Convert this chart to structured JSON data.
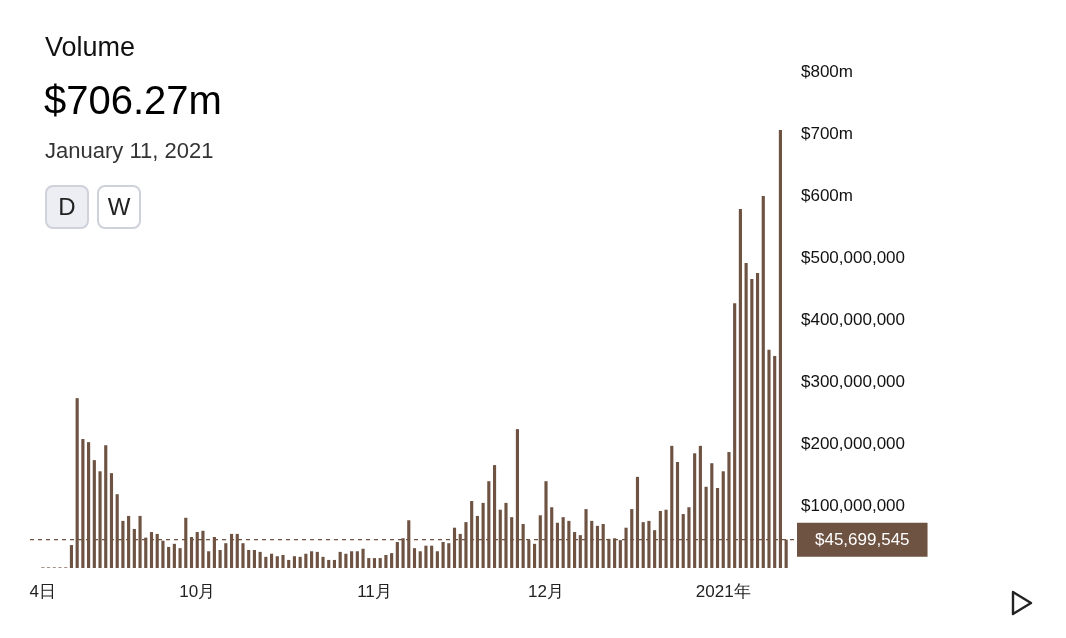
{
  "chart_data": {
    "type": "bar",
    "title": "Volume",
    "subtitle": "$706.27m",
    "annotations": [
      "January 11, 2021",
      "D",
      "W"
    ],
    "categories": [
      "4日",
      null,
      null,
      null,
      null,
      null,
      null,
      null,
      null,
      null,
      null,
      null,
      null,
      null,
      null,
      null,
      null,
      null,
      null,
      null,
      null,
      null,
      null,
      null,
      null,
      null,
      null,
      "10月",
      null,
      null,
      null,
      null,
      null,
      null,
      null,
      null,
      null,
      null,
      null,
      null,
      null,
      null,
      null,
      null,
      null,
      null,
      null,
      null,
      null,
      null,
      null,
      null,
      null,
      null,
      null,
      null,
      null,
      null,
      "11月",
      null,
      null,
      null,
      null,
      null,
      null,
      null,
      null,
      null,
      null,
      null,
      null,
      null,
      null,
      null,
      null,
      null,
      null,
      null,
      null,
      null,
      null,
      null,
      null,
      null,
      null,
      null,
      null,
      null,
      "12月",
      null,
      null,
      null,
      null,
      null,
      null,
      null,
      null,
      null,
      null,
      null,
      null,
      null,
      null,
      null,
      null,
      null,
      null,
      null,
      null,
      null,
      null,
      null,
      null,
      null,
      null,
      null,
      null,
      null,
      null,
      "2021年",
      null,
      null,
      null,
      null,
      null,
      null,
      null,
      null,
      null,
      null,
      null
    ],
    "values": [
      1000000,
      1000000,
      1000000,
      1000000,
      1000000,
      37000000,
      274000000,
      208000000,
      203000000,
      174000000,
      156000000,
      198000000,
      153000000,
      119000000,
      76000000,
      84000000,
      63000000,
      84000000,
      49000000,
      58000000,
      55000000,
      44000000,
      34000000,
      39000000,
      32000000,
      81000000,
      50000000,
      58000000,
      60000000,
      27000000,
      50000000,
      29000000,
      40000000,
      55000000,
      55000000,
      40000000,
      29000000,
      29000000,
      26000000,
      18000000,
      23000000,
      19000000,
      21000000,
      13000000,
      19000000,
      18000000,
      23000000,
      27000000,
      26000000,
      18000000,
      13000000,
      13000000,
      26000000,
      23000000,
      27000000,
      27000000,
      31000000,
      16000000,
      16000000,
      16000000,
      21000000,
      24000000,
      42000000,
      48000000,
      77000000,
      32000000,
      27000000,
      36000000,
      36000000,
      27000000,
      42000000,
      40000000,
      65000000,
      55000000,
      74000000,
      108000000,
      84000000,
      105000000,
      140000000,
      166000000,
      94000000,
      105000000,
      82000000,
      224000000,
      71000000,
      45000000,
      39000000,
      85000000,
      140000000,
      98000000,
      73000000,
      82000000,
      76000000,
      58000000,
      53000000,
      95000000,
      76000000,
      68000000,
      71000000,
      47000000,
      48000000,
      45000000,
      65000000,
      95000000,
      147000000,
      74000000,
      76000000,
      61000000,
      92000000,
      94000000,
      197000000,
      171000000,
      87000000,
      98000000,
      185000000,
      197000000,
      131000000,
      169000000,
      129000000,
      156000000,
      187000000,
      427000000,
      579000000,
      492000000,
      466000000,
      476000000,
      600000000,
      352000000,
      342000000,
      706270000,
      45699545
    ],
    "color": "#6e5242",
    "ylim": [
      0,
      800000000
    ],
    "yticks": [
      {
        "value": 100000000,
        "label": "$100,000,000"
      },
      {
        "value": 200000000,
        "label": "$200,000,000"
      },
      {
        "value": 300000000,
        "label": "$300,000,000"
      },
      {
        "value": 400000000,
        "label": "$400,000,000"
      },
      {
        "value": 500000000,
        "label": "$500,000,000"
      },
      {
        "value": 600000000,
        "label": "$600m"
      },
      {
        "value": 700000000,
        "label": "$700m"
      },
      {
        "value": 800000000,
        "label": "$800m"
      }
    ],
    "ref_lines": [
      {
        "axis": "y",
        "value": 45699545,
        "label": "$45,699,545",
        "color": "#6e5242",
        "line_style": "dashed"
      }
    ],
    "grid": false,
    "legend": false
  }
}
